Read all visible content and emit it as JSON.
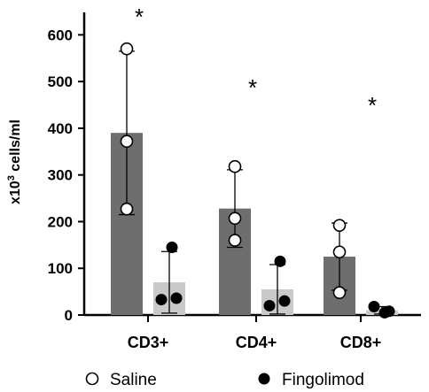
{
  "chart_data": {
    "type": "bar",
    "ylabel": "x10³ cells/ml",
    "ylabel_parts": {
      "prefix": "x10",
      "sup": "3",
      "suffix": " cells/ml"
    },
    "ylim": [
      0,
      650
    ],
    "yticks": [
      "0",
      "100",
      "200",
      "300",
      "400",
      "500",
      "600"
    ],
    "grid": false,
    "legend_position": "bottom",
    "categories": [
      "CD3+",
      "CD4+",
      "CD8+"
    ],
    "significance": [
      "*",
      "*",
      "*"
    ],
    "series": [
      {
        "name": "Saline",
        "marker": "open-circle",
        "bar_color": "#6e6e6e",
        "values": [
          390,
          228,
          125
        ],
        "sd": [
          175,
          83,
          72
        ],
        "points": [
          [
            570,
            372,
            227
          ],
          [
            318,
            207,
            160
          ],
          [
            192,
            135,
            48
          ]
        ]
      },
      {
        "name": "Fingolimod",
        "marker": "filled-circle",
        "bar_color": "#c9c9c9",
        "values": [
          70,
          55,
          10
        ],
        "sd": [
          66,
          53,
          8
        ],
        "points": [
          [
            145,
            33,
            36
          ],
          [
            115,
            20,
            30
          ],
          [
            5,
            18,
            8
          ]
        ]
      }
    ]
  }
}
